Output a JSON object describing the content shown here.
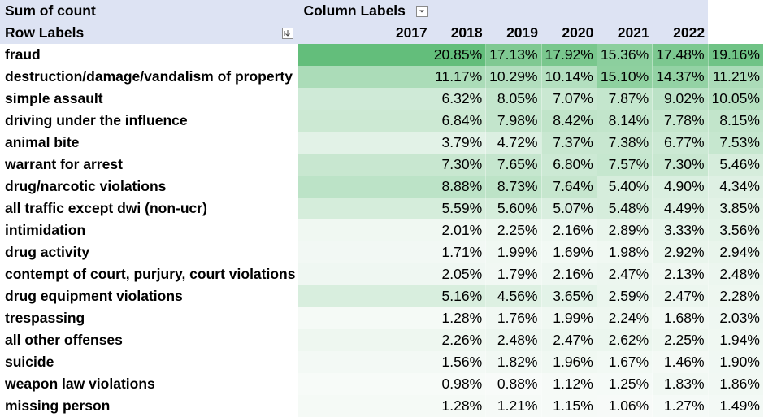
{
  "pivot": {
    "value_field": "Sum of count",
    "column_labels": "Column Labels",
    "row_labels": "Row Labels",
    "years": [
      "2017",
      "2018",
      "2019",
      "2020",
      "2021",
      "2022"
    ],
    "heatmap_colors": {
      "low": "#f8fbf9",
      "high": "#63be7b"
    },
    "rows": [
      {
        "label": "fraud",
        "values": [
          "20.85%",
          "17.13%",
          "17.92%",
          "15.36%",
          "17.48%",
          "19.16%"
        ]
      },
      {
        "label": "destruction/damage/vandalism of property",
        "values": [
          "11.17%",
          "10.29%",
          "10.14%",
          "15.10%",
          "14.37%",
          "11.21%"
        ]
      },
      {
        "label": "simple assault",
        "values": [
          "6.32%",
          "8.05%",
          "7.07%",
          "7.87%",
          "9.02%",
          "10.05%"
        ]
      },
      {
        "label": "driving under the influence",
        "values": [
          "6.84%",
          "7.98%",
          "8.42%",
          "8.14%",
          "7.78%",
          "8.15%"
        ]
      },
      {
        "label": "animal bite",
        "values": [
          "3.79%",
          "4.72%",
          "7.37%",
          "7.38%",
          "6.77%",
          "7.53%"
        ]
      },
      {
        "label": "warrant for arrest",
        "values": [
          "7.30%",
          "7.65%",
          "6.80%",
          "7.57%",
          "7.30%",
          "5.46%"
        ]
      },
      {
        "label": "drug/narcotic violations",
        "values": [
          "8.88%",
          "8.73%",
          "7.64%",
          "5.40%",
          "4.90%",
          "4.34%"
        ]
      },
      {
        "label": "all traffic except dwi (non-ucr)",
        "values": [
          "5.59%",
          "5.60%",
          "5.07%",
          "5.48%",
          "4.49%",
          "3.85%"
        ]
      },
      {
        "label": "intimidation",
        "values": [
          "2.01%",
          "2.25%",
          "2.16%",
          "2.89%",
          "3.33%",
          "3.56%"
        ]
      },
      {
        "label": "drug activity",
        "values": [
          "1.71%",
          "1.99%",
          "1.69%",
          "1.98%",
          "2.92%",
          "2.94%"
        ]
      },
      {
        "label": "contempt of court, purjury, court violations",
        "values": [
          "2.05%",
          "1.79%",
          "2.16%",
          "2.47%",
          "2.13%",
          "2.48%"
        ]
      },
      {
        "label": "drug equipment violations",
        "values": [
          "5.16%",
          "4.56%",
          "3.65%",
          "2.59%",
          "2.47%",
          "2.28%"
        ]
      },
      {
        "label": "trespassing",
        "values": [
          "1.28%",
          "1.76%",
          "1.99%",
          "2.24%",
          "1.68%",
          "2.03%"
        ]
      },
      {
        "label": "all other offenses",
        "values": [
          "2.26%",
          "2.48%",
          "2.47%",
          "2.62%",
          "2.25%",
          "1.94%"
        ]
      },
      {
        "label": "suicide",
        "values": [
          "1.56%",
          "1.82%",
          "1.96%",
          "1.67%",
          "1.46%",
          "1.90%"
        ]
      },
      {
        "label": "weapon law violations",
        "values": [
          "0.98%",
          "0.88%",
          "1.12%",
          "1.25%",
          "1.83%",
          "1.86%"
        ]
      },
      {
        "label": "missing person",
        "values": [
          "1.28%",
          "1.21%",
          "1.15%",
          "1.06%",
          "1.27%",
          "1.49%"
        ]
      }
    ]
  }
}
